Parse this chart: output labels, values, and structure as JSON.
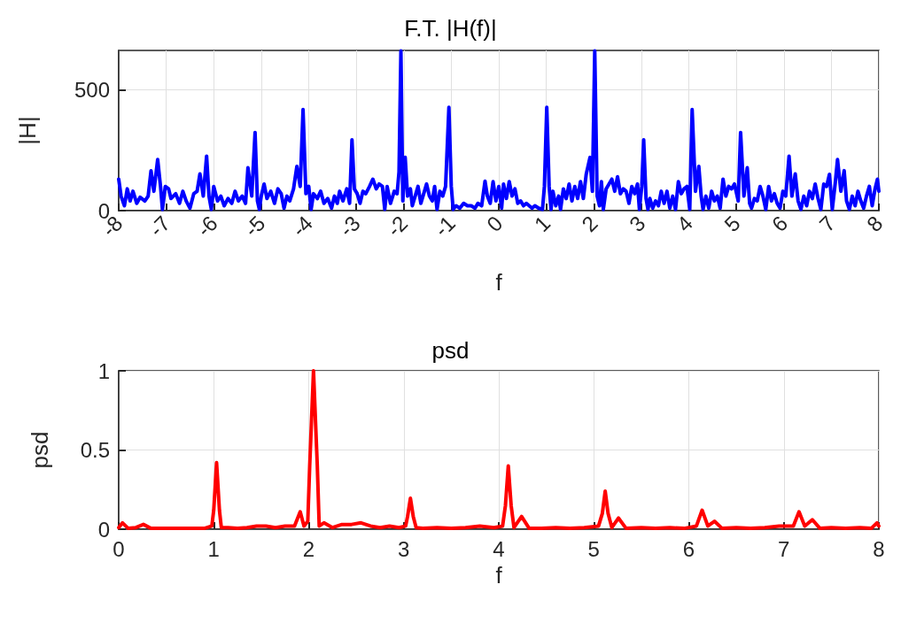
{
  "chart_data": [
    {
      "type": "line",
      "title": "F.T. |H(f)|",
      "xlabel": "f",
      "ylabel": "|H|",
      "x": [
        -8,
        -7.95,
        -7.88,
        -7.82,
        -7.76,
        -7.7,
        -7.62,
        -7.55,
        -7.45,
        -7.38,
        -7.32,
        -7.26,
        -7.18,
        -7.12,
        -7.08,
        -7.02,
        -6.95,
        -6.9,
        -6.8,
        -6.72,
        -6.65,
        -6.58,
        -6.5,
        -6.42,
        -6.35,
        -6.29,
        -6.22,
        -6.15,
        -6.1,
        -6.05,
        -6,
        -5.92,
        -5.85,
        -5.78,
        -5.7,
        -5.62,
        -5.55,
        -5.48,
        -5.4,
        -5.33,
        -5.28,
        -5.2,
        -5.13,
        -5.08,
        -5.04,
        -5,
        -4.94,
        -4.88,
        -4.8,
        -4.72,
        -4.65,
        -4.58,
        -4.52,
        -4.46,
        -4.4,
        -4.32,
        -4.25,
        -4.18,
        -4.12,
        -4.06,
        -4,
        -3.95,
        -3.9,
        -3.82,
        -3.75,
        -3.68,
        -3.6,
        -3.52,
        -3.46,
        -3.4,
        -3.35,
        -3.28,
        -3.2,
        -3.14,
        -3.09,
        -3.04,
        -2.98,
        -2.92,
        -2.86,
        -2.8,
        -2.72,
        -2.65,
        -2.58,
        -2.52,
        -2.45,
        -2.4,
        -2.35,
        -2.28,
        -2.2,
        -2.14,
        -2.1,
        -2.06,
        -2.02,
        -1.97,
        -1.92,
        -1.86,
        -1.82,
        -1.76,
        -1.7,
        -1.64,
        -1.58,
        -1.52,
        -1.46,
        -1.4,
        -1.35,
        -1.3,
        -1.24,
        -1.18,
        -1.12,
        -1.05,
        -1,
        -0.96,
        -0.9,
        -0.82,
        -0.74,
        -0.66,
        -0.58,
        -0.5,
        -0.44,
        -0.36,
        -0.29,
        -0.24,
        -0.18,
        -0.12,
        -0.06,
        0,
        0.06,
        0.1,
        0.16,
        0.22,
        0.28,
        0.34,
        0.4,
        0.46,
        0.52,
        0.58,
        0.64,
        0.7,
        0.76,
        0.84,
        0.92,
        0.96,
        1.01,
        1.06,
        1.1,
        1.14,
        1.2,
        1.26,
        1.3,
        1.36,
        1.42,
        1.48,
        1.54,
        1.6,
        1.66,
        1.72,
        1.78,
        1.84,
        1.92,
        1.97,
        2.02,
        2.07,
        2.12,
        2.16,
        2.2,
        2.26,
        2.32,
        2.38,
        2.44,
        2.5,
        2.56,
        2.62,
        2.68,
        2.74,
        2.8,
        2.86,
        2.92,
        2.96,
        3.01,
        3.05,
        3.1,
        3.14,
        3.18,
        3.24,
        3.3,
        3.36,
        3.42,
        3.48,
        3.54,
        3.6,
        3.66,
        3.72,
        3.78,
        3.84,
        3.9,
        3.96,
        4.02,
        4.07,
        4.14,
        4.21,
        4.26,
        4.3,
        4.36,
        4.42,
        4.48,
        4.54,
        4.6,
        4.66,
        4.72,
        4.78,
        4.84,
        4.9,
        4.96,
        5.04,
        5.09,
        5.16,
        5.23,
        5.28,
        5.32,
        5.38,
        5.44,
        5.5,
        5.56,
        5.62,
        5.68,
        5.74,
        5.8,
        5.86,
        5.92,
        5.98,
        6.04,
        6.11,
        6.17,
        6.24,
        6.3,
        6.36,
        6.42,
        6.48,
        6.54,
        6.6,
        6.66,
        6.72,
        6.78,
        6.84,
        6.9,
        6.96,
        7.02,
        7.08,
        7.13,
        7.2,
        7.27,
        7.32,
        7.38,
        7.44,
        7.5,
        7.56,
        7.62,
        7.68,
        7.74,
        7.8,
        7.86,
        7.92,
        7.97,
        8
      ],
      "series": [
        {
          "color": "#0000ff",
          "values": [
            130,
            60,
            20,
            90,
            40,
            80,
            30,
            55,
            40,
            60,
            165,
            80,
            211,
            100,
            5,
            100,
            90,
            50,
            70,
            30,
            80,
            40,
            10,
            70,
            80,
            152,
            60,
            225,
            60,
            5,
            100,
            40,
            60,
            20,
            50,
            30,
            80,
            40,
            60,
            30,
            177,
            60,
            323,
            40,
            5,
            60,
            110,
            50,
            80,
            30,
            90,
            70,
            10,
            60,
            40,
            90,
            183,
            100,
            418,
            70,
            100,
            5,
            70,
            50,
            80,
            30,
            50,
            10,
            60,
            30,
            80,
            40,
            90,
            30,
            293,
            90,
            70,
            30,
            80,
            70,
            100,
            130,
            90,
            110,
            100,
            5,
            100,
            30,
            80,
            70,
            160,
            660,
            40,
            220,
            60,
            90,
            20,
            60,
            100,
            30,
            70,
            110,
            60,
            40,
            100,
            5,
            80,
            60,
            100,
            427,
            100,
            5,
            20,
            10,
            30,
            20,
            20,
            10,
            30,
            20,
            122,
            60,
            30,
            120,
            40,
            100,
            10,
            110,
            50,
            120,
            60,
            90,
            30,
            40,
            20,
            30,
            20,
            10,
            20,
            10,
            5,
            100,
            427,
            100,
            5,
            80,
            20,
            60,
            5,
            90,
            50,
            110,
            40,
            100,
            50,
            120,
            50,
            150,
            220,
            80,
            660,
            60,
            20,
            120,
            5,
            90,
            110,
            130,
            80,
            140,
            70,
            90,
            80,
            30,
            100,
            70,
            110,
            5,
            100,
            293,
            50,
            5,
            50,
            10,
            40,
            20,
            80,
            30,
            80,
            10,
            60,
            5,
            120,
            70,
            90,
            100,
            5,
            418,
            80,
            183,
            60,
            5,
            60,
            10,
            80,
            40,
            60,
            10,
            130,
            60,
            100,
            90,
            110,
            40,
            323,
            60,
            177,
            30,
            10,
            50,
            40,
            100,
            60,
            5,
            100,
            40,
            70,
            30,
            10,
            80,
            60,
            225,
            60,
            152,
            40,
            5,
            60,
            20,
            80,
            50,
            110,
            50,
            5,
            110,
            100,
            150,
            5,
            110,
            211,
            80,
            165,
            40,
            5,
            60,
            20,
            80,
            40,
            10,
            60,
            100,
            20,
            90,
            130,
            80
          ]
        }
      ],
      "xlim": [
        -8,
        8
      ],
      "ylim": [
        0,
        662
      ],
      "xticks": [
        -8,
        -7,
        -6,
        -5,
        -4,
        -3,
        -2,
        -1,
        0,
        1,
        2,
        3,
        4,
        5,
        6,
        7,
        8
      ],
      "yticks": [
        0,
        500
      ],
      "grid": true,
      "marker": "none",
      "line_style": "solid"
    },
    {
      "type": "line",
      "title": "psd",
      "xlabel": "f",
      "ylabel": "psd",
      "x": [
        0,
        0.04,
        0.1,
        0.18,
        0.26,
        0.34,
        0.45,
        0.6,
        0.75,
        0.9,
        0.98,
        1,
        1.03,
        1.06,
        1.08,
        1.15,
        1.25,
        1.35,
        1.45,
        1.55,
        1.65,
        1.75,
        1.85,
        1.91,
        1.95,
        1.99,
        2.01,
        2.05,
        2.09,
        2.11,
        2.16,
        2.25,
        2.35,
        2.45,
        2.55,
        2.65,
        2.75,
        2.85,
        2.95,
        3.02,
        3.04,
        3.07,
        3.1,
        3.13,
        3.2,
        3.35,
        3.5,
        3.65,
        3.8,
        3.95,
        4.04,
        4.07,
        4.1,
        4.13,
        4.16,
        4.24,
        4.32,
        4.45,
        4.6,
        4.75,
        4.9,
        5.05,
        5.09,
        5.12,
        5.15,
        5.19,
        5.26,
        5.34,
        5.5,
        5.65,
        5.8,
        5.95,
        6.08,
        6.14,
        6.2,
        6.27,
        6.35,
        6.5,
        6.65,
        6.8,
        6.95,
        7.1,
        7.16,
        7.22,
        7.3,
        7.38,
        7.5,
        7.65,
        7.8,
        7.92,
        7.98,
        8
      ],
      "series": [
        {
          "color": "#ff0000",
          "values": [
            0.01,
            0.04,
            0.005,
            0.01,
            0.03,
            0.005,
            0.005,
            0.005,
            0.005,
            0.005,
            0.02,
            0.12,
            0.42,
            0.12,
            0.01,
            0.01,
            0.005,
            0.01,
            0.02,
            0.02,
            0.01,
            0.02,
            0.02,
            0.11,
            0.02,
            0.05,
            0.4,
            1,
            0.4,
            0.02,
            0.04,
            0.01,
            0.03,
            0.03,
            0.04,
            0.02,
            0.01,
            0.02,
            0.01,
            0.02,
            0.08,
            0.195,
            0.08,
            0.01,
            0.005,
            0.01,
            0.005,
            0.01,
            0.02,
            0.01,
            0.02,
            0.15,
            0.4,
            0.15,
            0.01,
            0.08,
            0.005,
            0.005,
            0.01,
            0.005,
            0.01,
            0.02,
            0.1,
            0.24,
            0.1,
            0.01,
            0.07,
            0.005,
            0.01,
            0.005,
            0.01,
            0.005,
            0.02,
            0.12,
            0.02,
            0.05,
            0.005,
            0.01,
            0.005,
            0.01,
            0.02,
            0.02,
            0.11,
            0.02,
            0.06,
            0.005,
            0.01,
            0.005,
            0.01,
            0.005,
            0.04,
            0.02
          ]
        }
      ],
      "xlim": [
        0,
        8
      ],
      "ylim": [
        0,
        1
      ],
      "xticks": [
        0,
        1,
        2,
        3,
        4,
        5,
        6,
        7,
        8
      ],
      "yticks": [
        0,
        0.5,
        1
      ],
      "grid": true,
      "marker": "none",
      "line_style": "solid"
    }
  ]
}
